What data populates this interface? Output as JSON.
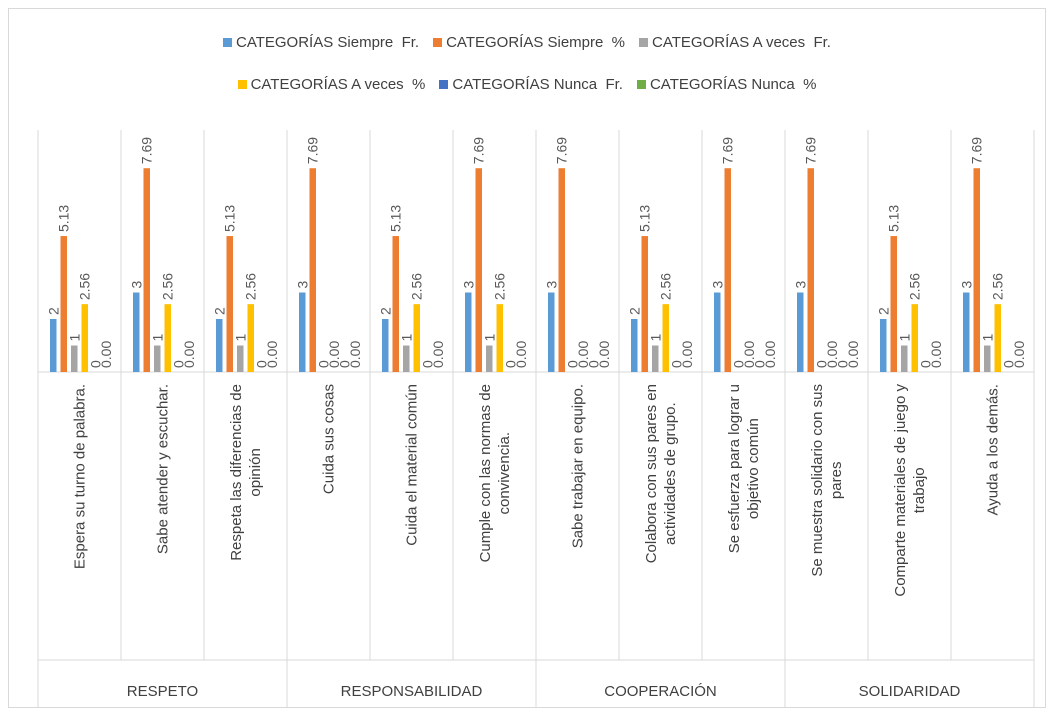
{
  "chart_data": {
    "type": "bar",
    "categories": [
      "Espera su turno de palabra.",
      "Sabe atender y escuchar.",
      "Respeta las diferencias de opinión",
      "Cuida sus cosas",
      "Cuida el material común",
      "Cumple con las normas de convivencia.",
      "Sabe trabajar en equipo.",
      "Colabora con sus pares en actividades de grupo.",
      "Se esfuerza para lograr u objetivo común",
      "Se muestra solidario con sus pares",
      "Comparte materiales de juego y trabajo",
      "Ayuda a los demás."
    ],
    "groups": [
      {
        "name": "RESPETO",
        "size": 3
      },
      {
        "name": "RESPONSABILIDAD",
        "size": 3
      },
      {
        "name": "COOPERACIÓN",
        "size": 3
      },
      {
        "name": "SOLIDARIDAD",
        "size": 3
      }
    ],
    "series": [
      {
        "name": "CATEGORÍAS Siempre  Fr.",
        "color": "#5b9bd5",
        "values": [
          2,
          3,
          2,
          3,
          2,
          3,
          3,
          2,
          3,
          3,
          2,
          3
        ]
      },
      {
        "name": "CATEGORÍAS Siempre  %",
        "color": "#ed7d31",
        "values": [
          5.13,
          7.69,
          5.13,
          7.69,
          5.13,
          7.69,
          7.69,
          5.13,
          7.69,
          7.69,
          5.13,
          7.69
        ]
      },
      {
        "name": "CATEGORÍAS A veces  Fr.",
        "color": "#a5a5a5",
        "values": [
          1,
          1,
          1,
          0,
          1,
          1,
          0,
          1,
          0,
          0,
          1,
          1
        ]
      },
      {
        "name": "CATEGORÍAS A veces  %",
        "color": "#ffc000",
        "values": [
          2.56,
          2.56,
          2.56,
          0,
          2.56,
          2.56,
          0,
          2.56,
          0,
          0,
          2.56,
          2.56
        ],
        "value_labels": [
          "2.56",
          "2.56",
          "2.56",
          "0.00",
          "2.56",
          "2.56",
          "0.00",
          "2.56",
          "0.00",
          "0.00",
          "2.56",
          "2.56"
        ]
      },
      {
        "name": "CATEGORÍAS Nunca  Fr.",
        "color": "#4472c4",
        "values": [
          0,
          0,
          0,
          0,
          0,
          0,
          0,
          0,
          0,
          0,
          0,
          0
        ]
      },
      {
        "name": "CATEGORÍAS Nunca  %",
        "color": "#70ad47",
        "values": [
          0,
          0,
          0,
          0,
          0,
          0,
          0,
          0,
          0,
          0,
          0,
          0
        ],
        "value_labels": [
          "0.00",
          "0.00",
          "0.00",
          "0.00",
          "0.00",
          "0.00",
          "0.00",
          "0.00",
          "0.00",
          "0.00",
          "0.00",
          "0.00"
        ]
      }
    ],
    "ylim": [
      0,
      8
    ]
  }
}
